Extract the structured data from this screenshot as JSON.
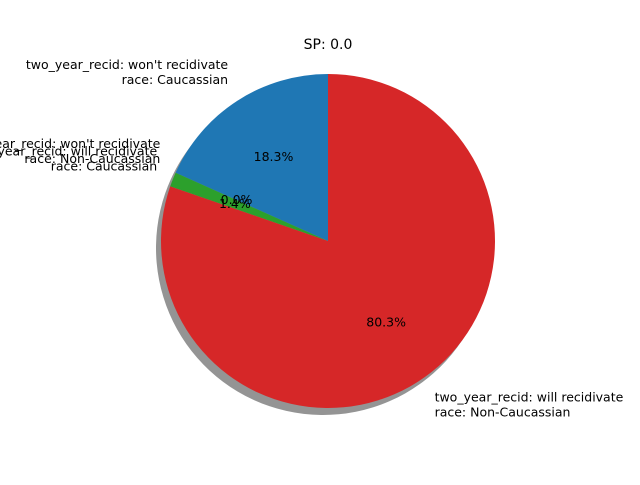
{
  "chart_data": {
    "type": "pie",
    "title": "SP: 0.0",
    "slices": [
      {
        "label": [
          "two_year_recid: won't recidivate",
          "race: Caucassian"
        ],
        "value": 18.3,
        "pct_label": "18.3%",
        "color": "#1f77b4"
      },
      {
        "label": [
          "two_year_recid: won't recidivate",
          "race: Non-Caucassian"
        ],
        "value": 0.0,
        "pct_label": "0.0%",
        "color": "#ff7f0e"
      },
      {
        "label": [
          "two_year_recid: will recidivate",
          "race: Caucassian"
        ],
        "value": 1.4,
        "pct_label": "1.4%",
        "color": "#2ca02c"
      },
      {
        "label": [
          "two_year_recid: will recidivate",
          "race: Non-Caucassian"
        ],
        "value": 80.3,
        "pct_label": "80.3%",
        "color": "#d62728"
      }
    ],
    "start_angle_deg": 90,
    "direction": "counterclockwise",
    "shadow": true
  }
}
